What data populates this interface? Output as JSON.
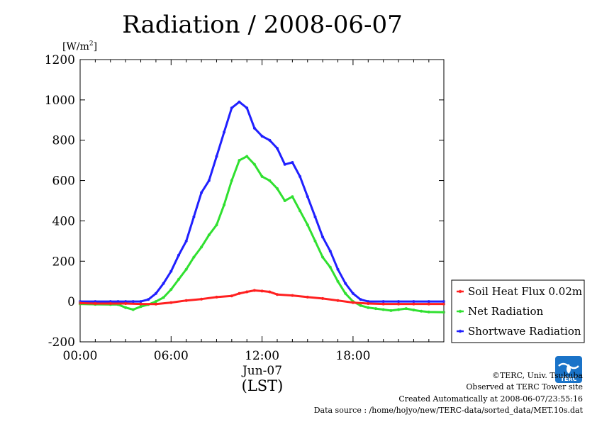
{
  "chart_data": {
    "type": "line",
    "title": "Radiation / 2008-06-07",
    "yunit_prefix": "[W/m",
    "yunit_sup": "2",
    "yunit_suffix": "]",
    "xlabel": "(LST)",
    "xdate": "Jun-07",
    "xlim": [
      0,
      23.99
    ],
    "ylim": [
      -200,
      1200
    ],
    "x_ticks": [
      {
        "x": 0,
        "label": "00:00"
      },
      {
        "x": 6,
        "label": "06:00"
      },
      {
        "x": 12,
        "label": "12:00"
      },
      {
        "x": 18,
        "label": "18:00"
      }
    ],
    "y_ticks": [
      {
        "y": -200,
        "label": "-200"
      },
      {
        "y": 0,
        "label": "0"
      },
      {
        "y": 200,
        "label": "200"
      },
      {
        "y": 400,
        "label": "400"
      },
      {
        "y": 600,
        "label": "600"
      },
      {
        "y": 800,
        "label": "800"
      },
      {
        "y": 1000,
        "label": "1000"
      },
      {
        "y": 1200,
        "label": "1200"
      }
    ],
    "grid": false,
    "legend_position": "right",
    "series": [
      {
        "name": "Soil Heat Flux 0.02m",
        "color": "#ff2020",
        "x": [
          0,
          1,
          2,
          3,
          4,
          5,
          6,
          7,
          8,
          9,
          10,
          10.5,
          11,
          11.5,
          12,
          12.5,
          13,
          14,
          15,
          16,
          17,
          18,
          19,
          20,
          21,
          22,
          23,
          23.99
        ],
        "y": [
          -8,
          -10,
          -10,
          -10,
          -12,
          -13,
          -5,
          5,
          12,
          22,
          28,
          40,
          48,
          55,
          52,
          48,
          35,
          30,
          22,
          15,
          5,
          -5,
          -10,
          -12,
          -12,
          -12,
          -12,
          -12
        ]
      },
      {
        "name": "Net Radiation",
        "color": "#30e030",
        "x": [
          0,
          1,
          2,
          2.5,
          3,
          3.5,
          4,
          4.5,
          5,
          5.5,
          6,
          6.5,
          7,
          7.5,
          8,
          8.5,
          9,
          9.5,
          10,
          10.5,
          11,
          11.5,
          12,
          12.5,
          13,
          13.5,
          14,
          14.5,
          15,
          15.5,
          16,
          16.5,
          17,
          17.5,
          18,
          18.5,
          19,
          19.5,
          20,
          20.5,
          21,
          21.5,
          22,
          22.5,
          23,
          23.99
        ],
        "y": [
          -12,
          -14,
          -15,
          -15,
          -30,
          -40,
          -25,
          -15,
          0,
          20,
          60,
          110,
          160,
          220,
          270,
          330,
          380,
          480,
          600,
          700,
          720,
          680,
          620,
          600,
          560,
          500,
          520,
          450,
          380,
          300,
          220,
          170,
          100,
          40,
          0,
          -20,
          -30,
          -35,
          -40,
          -45,
          -40,
          -35,
          -42,
          -48,
          -52,
          -53
        ]
      },
      {
        "name": "Shortwave Radiation",
        "color": "#2020ff",
        "x": [
          0,
          1,
          2,
          2.5,
          3,
          3.5,
          4,
          4.5,
          5,
          5.5,
          6,
          6.5,
          7,
          7.5,
          8,
          8.5,
          9,
          9.5,
          10,
          10.5,
          11,
          11.5,
          12,
          12.5,
          13,
          13.5,
          14,
          14.5,
          15,
          15.5,
          16,
          16.5,
          17,
          17.5,
          18,
          18.5,
          19,
          20,
          21,
          22,
          23,
          23.99
        ],
        "y": [
          0,
          0,
          0,
          0,
          0,
          0,
          0,
          10,
          40,
          90,
          150,
          230,
          300,
          420,
          540,
          600,
          720,
          840,
          960,
          990,
          960,
          860,
          820,
          800,
          760,
          680,
          690,
          620,
          520,
          420,
          320,
          250,
          160,
          90,
          40,
          10,
          0,
          0,
          0,
          0,
          0,
          0
        ]
      }
    ]
  },
  "credits": {
    "org": "©TERC, Univ. Tsukuba",
    "site": "Observed at TERC Tower site",
    "created": "Created Automatically at 2008-06-07/23:55:16",
    "source": "Data source : /home/hojyo/new/TERC-data/sorted_data/MET.10s.dat",
    "logo_text": "TERC"
  },
  "colors": {
    "axis": "#000000",
    "logo": "#1a73c8"
  }
}
